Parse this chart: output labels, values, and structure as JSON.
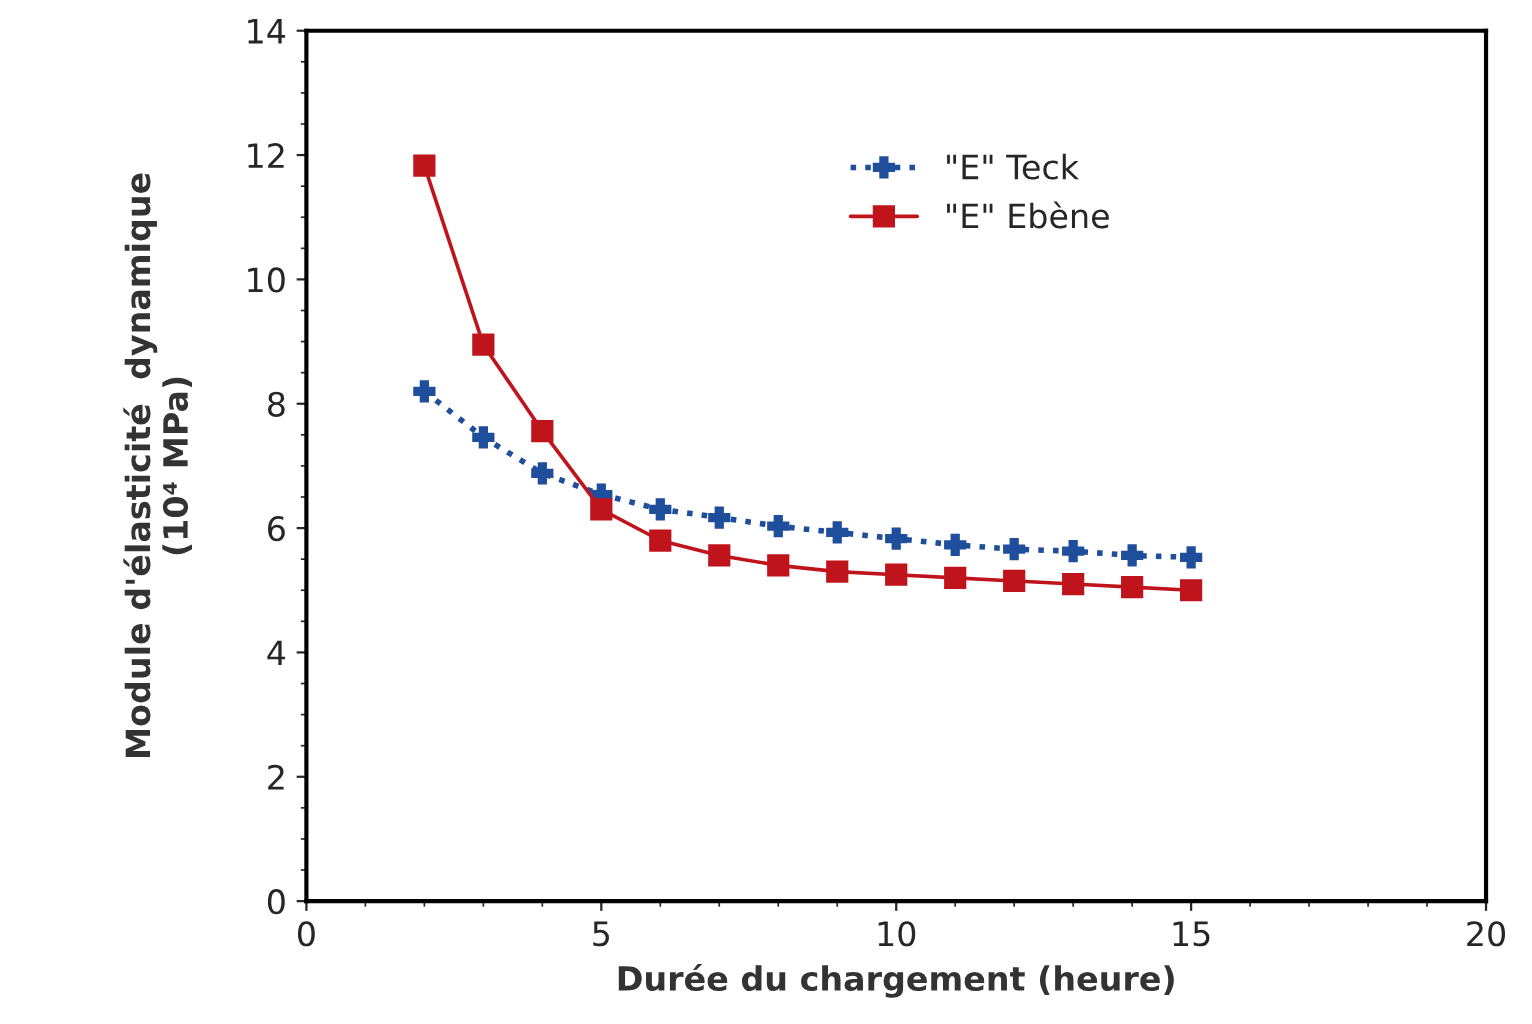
{
  "chart_data": {
    "type": "line",
    "xlabel": "Durée du chargement (heure)",
    "ylabel": "Module d'élasticité  dynamique\n(10⁴ MPa)",
    "xlim": [
      0,
      20
    ],
    "xticks": [
      0,
      5,
      10,
      15,
      20
    ],
    "ylim": [
      0,
      14
    ],
    "yticks": [
      0,
      2,
      4,
      6,
      8,
      10,
      12,
      14
    ],
    "grid": false,
    "legend": "top right",
    "series": [
      {
        "name": "\"E\" Teck",
        "color": "#1f4e9c",
        "marker": "cross",
        "line_style": "dotted",
        "x": [
          2,
          3,
          4,
          5,
          6,
          7,
          8,
          9,
          10,
          11,
          12,
          13,
          14,
          15
        ],
        "values": [
          8.2,
          7.46,
          6.88,
          6.54,
          6.3,
          6.17,
          6.03,
          5.93,
          5.83,
          5.73,
          5.66,
          5.63,
          5.56,
          5.53
        ]
      },
      {
        "name": "\"E\" Ebène",
        "color": "#c0141c",
        "marker": "square",
        "line_style": "solid",
        "x": [
          2,
          3,
          4,
          5,
          6,
          7,
          8,
          9,
          10,
          11,
          12,
          13,
          14,
          15
        ],
        "values": [
          11.83,
          8.95,
          7.56,
          6.3,
          5.8,
          5.56,
          5.4,
          5.3,
          5.25,
          5.2,
          5.15,
          5.1,
          5.05,
          5.0
        ]
      }
    ]
  }
}
